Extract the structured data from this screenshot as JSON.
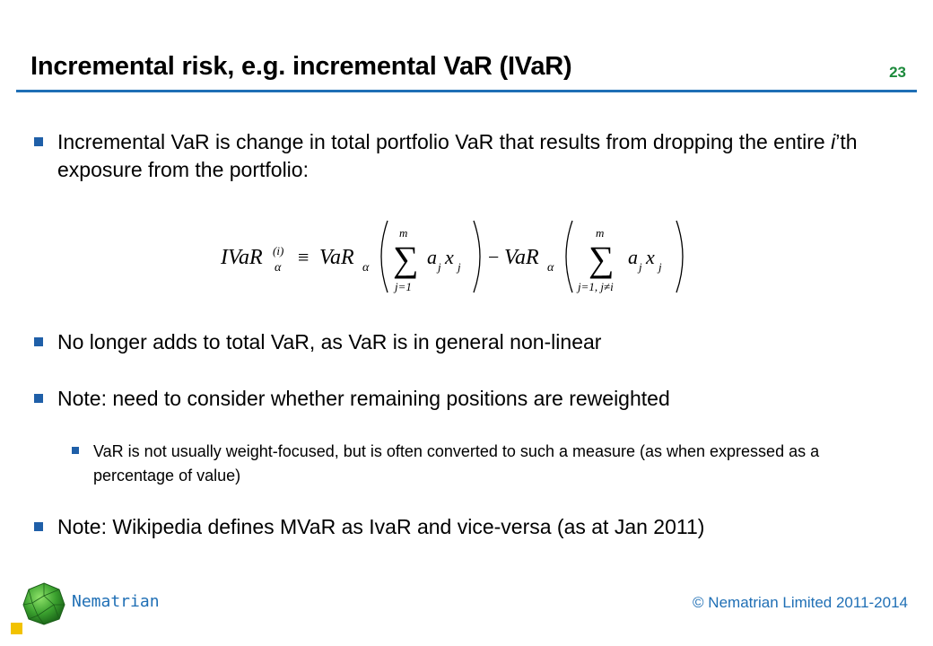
{
  "slide": {
    "title": "Incremental risk, e.g. incremental VaR (IVaR)",
    "number": "23"
  },
  "bullets": [
    {
      "text_before": "Incremental VaR is change in total portfolio VaR that results from dropping the entire ",
      "text_italic": "i",
      "text_after": "’th exposure from the portfolio:"
    },
    {
      "text": "No longer adds to total VaR, as VaR is in general non-linear"
    },
    {
      "text": "Note: need to consider whether remaining positions are reweighted"
    },
    {
      "text": "VaR is not usually weight-focused, but is often converted to such a measure (as when expressed as a percentage of value)"
    },
    {
      "text": "Note: Wikipedia defines MVaR as IvaR and vice-versa (as at Jan 2011)"
    }
  ],
  "formula": {
    "lhs": "IVaR",
    "lhs_sub": "α",
    "lhs_sup": "(i)",
    "equiv": "≡",
    "var": "VaR",
    "var_sub": "α",
    "sum_upper": "m",
    "sum1_lower": "j=1",
    "sum2_lower": "j=1, j≠i",
    "term_a": "a",
    "term_x": "x",
    "term_j": "j",
    "minus": "−"
  },
  "footer": {
    "brand": "Nematrian",
    "copyright": "© Nematrian Limited 2011-2014"
  },
  "colors": {
    "accent_blue": "#1f6fb5",
    "slide_number_green": "#1d8a3c",
    "bullet_blue": "#1f5fa8",
    "corner_yellow": "#f2c200"
  }
}
